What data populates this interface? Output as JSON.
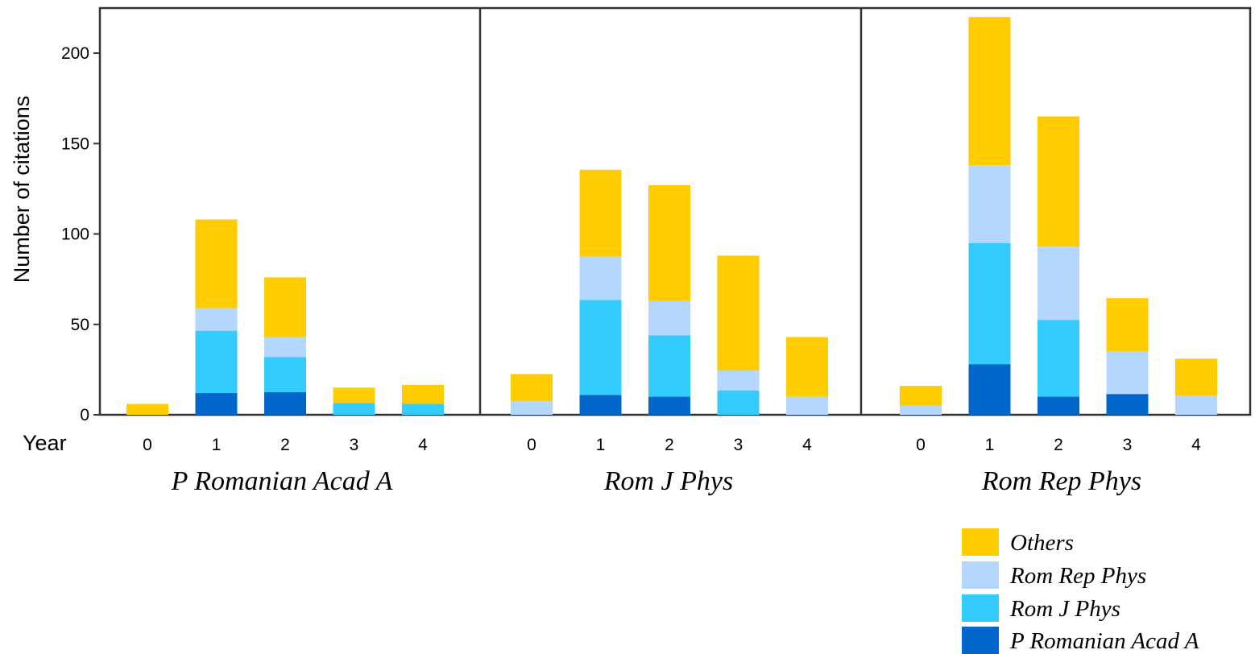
{
  "chart_data": {
    "type": "bar",
    "stacked": true,
    "ylabel": "Number of citations",
    "xlabel": "Year",
    "ylim": [
      0,
      225
    ],
    "yticks": [
      0,
      50,
      100,
      150,
      200
    ],
    "categories": [
      "0",
      "1",
      "2",
      "3",
      "4"
    ],
    "stack_order": [
      "P Romanian Acad A",
      "Rom J Phys",
      "Rom Rep Phys",
      "Others"
    ],
    "colors": {
      "Others": "#ffcc00",
      "Rom Rep Phys": "#b3d7ff",
      "Rom J Phys": "#33ccff",
      "P Romanian Acad A": "#0066cc"
    },
    "panels": [
      {
        "title": "P Romanian Acad A",
        "series": [
          {
            "name": "P Romanian Acad A",
            "values": [
              0,
              12,
              12.5,
              0,
              0
            ]
          },
          {
            "name": "Rom J Phys",
            "values": [
              0,
              34.5,
              19.5,
              6.5,
              6
            ]
          },
          {
            "name": "Rom Rep Phys",
            "values": [
              0,
              12.5,
              11,
              0,
              0
            ]
          },
          {
            "name": "Others",
            "values": [
              6,
              49,
              33,
              8.5,
              10.5
            ]
          }
        ]
      },
      {
        "title": "Rom J Phys",
        "series": [
          {
            "name": "P Romanian Acad A",
            "values": [
              0,
              11,
              10,
              0,
              0
            ]
          },
          {
            "name": "Rom J Phys",
            "values": [
              0,
              52.5,
              34,
              13.5,
              0
            ]
          },
          {
            "name": "Rom Rep Phys",
            "values": [
              7.5,
              24,
              19,
              11,
              10
            ]
          },
          {
            "name": "Others",
            "values": [
              15,
              48,
              64,
              63.5,
              33
            ]
          }
        ]
      },
      {
        "title": "Rom Rep Phys",
        "series": [
          {
            "name": "P Romanian Acad A",
            "values": [
              0,
              28,
              10,
              11.5,
              0
            ]
          },
          {
            "name": "Rom J Phys",
            "values": [
              0,
              67,
              42.5,
              0,
              0
            ]
          },
          {
            "name": "Rom Rep Phys",
            "values": [
              5,
              43,
              40.5,
              23.5,
              10.5
            ]
          },
          {
            "name": "Others",
            "values": [
              11,
              82,
              72,
              29.5,
              20.5
            ]
          }
        ]
      }
    ],
    "legend": [
      {
        "label": "Others",
        "color": "#ffcc00"
      },
      {
        "label": "Rom Rep Phys",
        "color": "#b3d7ff"
      },
      {
        "label": "Rom J Phys",
        "color": "#33ccff"
      },
      {
        "label": "P Romanian Acad A",
        "color": "#0066cc"
      }
    ]
  }
}
